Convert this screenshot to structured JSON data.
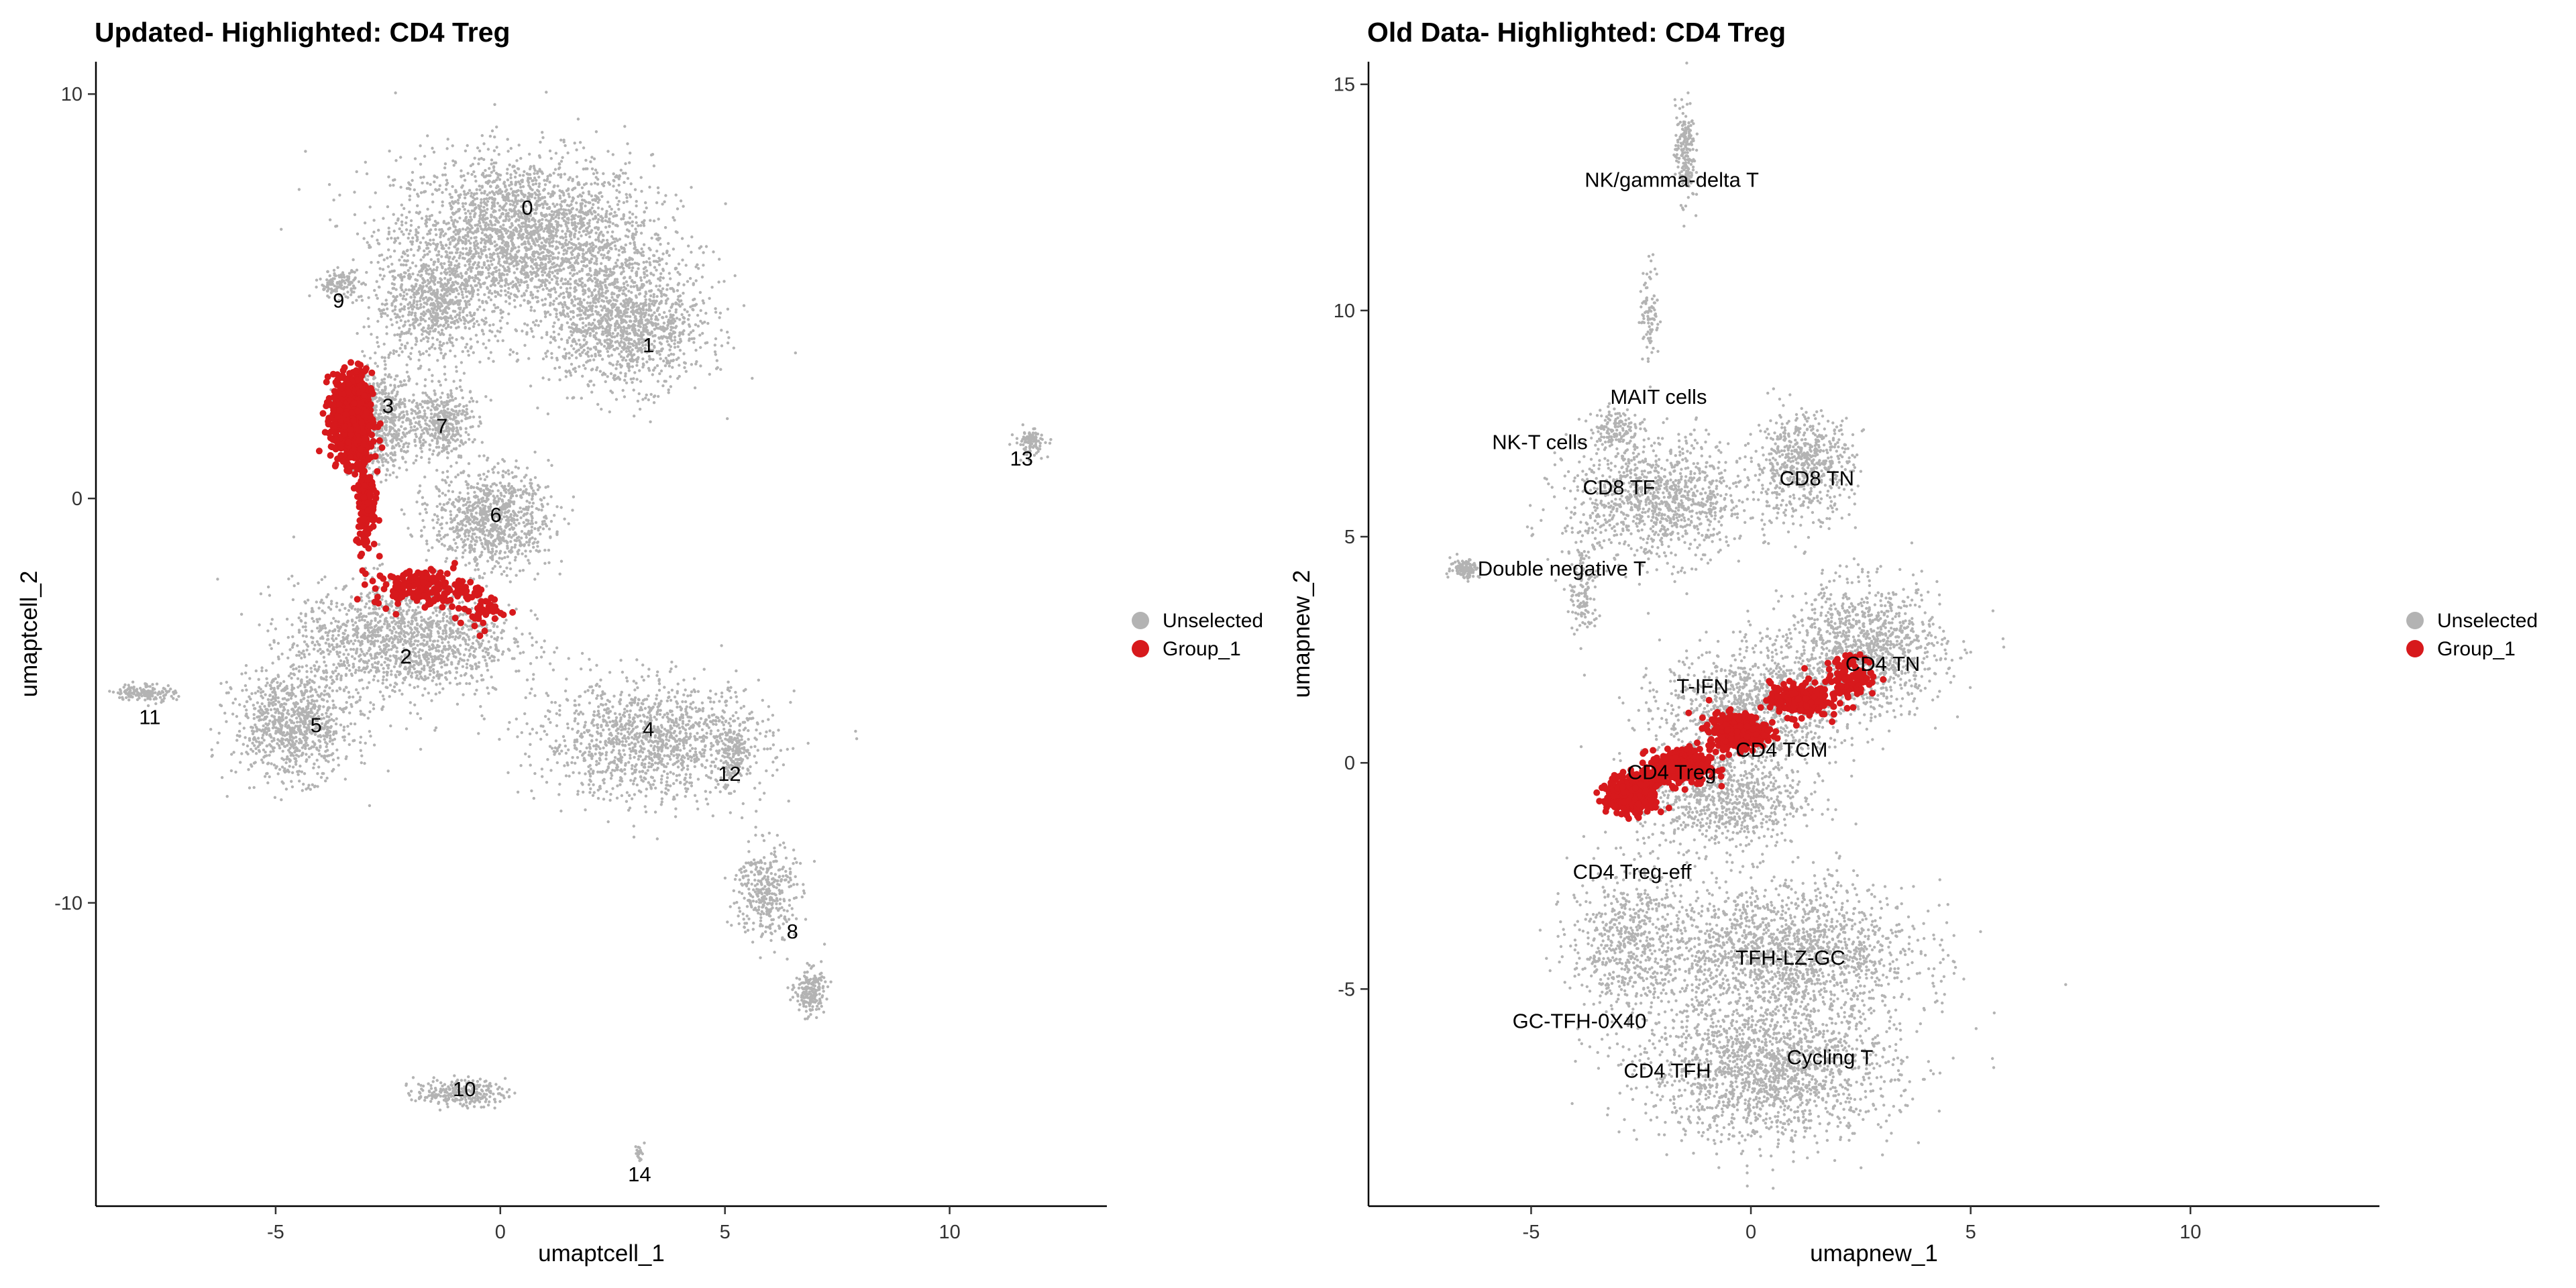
{
  "chart_data": [
    {
      "type": "scatter",
      "title": "Updated- Highlighted: CD4 Treg",
      "xlabel": "umaptcell_1",
      "ylabel": "umaptcell_2",
      "xlim": [
        -9,
        13.5
      ],
      "ylim": [
        -17.5,
        10.8
      ],
      "x_ticks": [
        -5,
        0,
        5,
        10
      ],
      "x_tick_labels": [
        "-5",
        "0",
        "5",
        "10"
      ],
      "y_ticks": [
        -10,
        0,
        10
      ],
      "y_tick_labels": [
        "-10",
        "0",
        "10"
      ],
      "grid": false,
      "legend": {
        "position": "right",
        "entries": [
          {
            "label": "Unselected",
            "color": "#b3b3b3"
          },
          {
            "label": "Group_1",
            "color": "#d7191c"
          }
        ]
      },
      "series_colors": {
        "Unselected": "#b3b3b3",
        "Group_1": "#d7191c"
      },
      "cluster_labels": [
        {
          "text": "0",
          "x": 0.6,
          "y": 7.2
        },
        {
          "text": "1",
          "x": 3.3,
          "y": 3.8
        },
        {
          "text": "9",
          "x": -3.6,
          "y": 4.9
        },
        {
          "text": "3",
          "x": -2.5,
          "y": 2.3
        },
        {
          "text": "7",
          "x": -1.3,
          "y": 1.8
        },
        {
          "text": "6",
          "x": -0.1,
          "y": -0.4
        },
        {
          "text": "13",
          "x": 11.6,
          "y": 1.0
        },
        {
          "text": "2",
          "x": -2.1,
          "y": -3.9
        },
        {
          "text": "4",
          "x": 3.3,
          "y": -5.7
        },
        {
          "text": "12",
          "x": 5.1,
          "y": -6.8
        },
        {
          "text": "11",
          "x": -7.8,
          "y": -5.4
        },
        {
          "text": "5",
          "x": -4.1,
          "y": -5.6
        },
        {
          "text": "8",
          "x": 6.5,
          "y": -10.7
        },
        {
          "text": "10",
          "x": -0.8,
          "y": -14.6
        },
        {
          "text": "14",
          "x": 3.1,
          "y": -16.7
        }
      ]
    },
    {
      "type": "scatter",
      "title": "Old Data- Highlighted: CD4 Treg",
      "xlabel": "umapnew_1",
      "ylabel": "umapnew_2",
      "xlim": [
        -8.7,
        14.3
      ],
      "ylim": [
        -9.8,
        15.5
      ],
      "x_ticks": [
        -5,
        0,
        5,
        10
      ],
      "x_tick_labels": [
        "-5",
        "0",
        "5",
        "10"
      ],
      "y_ticks": [
        -5,
        0,
        5,
        10,
        15
      ],
      "y_tick_labels": [
        "-5",
        "0",
        "5",
        "10",
        "15"
      ],
      "grid": false,
      "legend": {
        "position": "right",
        "entries": [
          {
            "label": "Unselected",
            "color": "#b3b3b3"
          },
          {
            "label": "Group_1",
            "color": "#d7191c"
          }
        ]
      },
      "series_colors": {
        "Unselected": "#b3b3b3",
        "Group_1": "#d7191c"
      },
      "cluster_labels": [
        {
          "text": "NK/gamma-delta T",
          "x": -1.8,
          "y": 12.9
        },
        {
          "text": "MAIT cells",
          "x": -2.1,
          "y": 8.1
        },
        {
          "text": "NK-T cells",
          "x": -4.8,
          "y": 7.1
        },
        {
          "text": "CD8 TF",
          "x": -3.0,
          "y": 6.1
        },
        {
          "text": "CD8 TN",
          "x": 1.5,
          "y": 6.3
        },
        {
          "text": "Double negative T",
          "x": -4.3,
          "y": 4.3
        },
        {
          "text": "CD4 TN",
          "x": 3.0,
          "y": 2.2
        },
        {
          "text": "T-IFN",
          "x": -1.1,
          "y": 1.7
        },
        {
          "text": "CD4 TCM",
          "x": 0.7,
          "y": 0.3
        },
        {
          "text": "CD4 Treg",
          "x": -1.8,
          "y": -0.2
        },
        {
          "text": "CD4 Treg-eff",
          "x": -2.7,
          "y": -2.4
        },
        {
          "text": "TFH-LZ-GC",
          "x": 0.9,
          "y": -4.3
        },
        {
          "text": "GC-TFH-0X40",
          "x": -3.9,
          "y": -5.7
        },
        {
          "text": "Cycling T",
          "x": 1.8,
          "y": -6.5
        },
        {
          "text": "CD4 TFH",
          "x": -1.9,
          "y": -6.8
        }
      ]
    }
  ]
}
